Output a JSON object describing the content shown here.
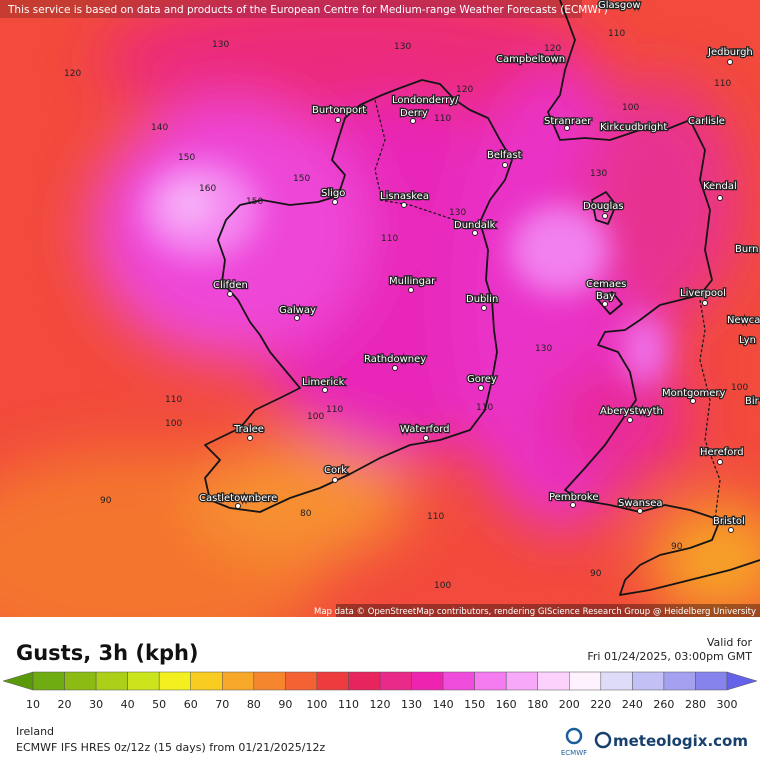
{
  "disclaimer": "This service is based on data and products of the European Centre for Medium-range Weather Forecasts (ECMWF)",
  "attribution": "Map data © OpenStreetMap contributors, rendering GIScience Research Group @ Heidelberg University",
  "cities": [
    "Glasgow",
    "Jedburgh",
    "Campbeltown",
    "Londonderry/",
    "Derry",
    "Burtonport",
    "Stranraer",
    "Kirkcudbright",
    "Carlisle",
    "Belfast",
    "Kendal",
    "Sligo",
    "Lisnaskea",
    "Douglas",
    "Dundalk",
    "Burn",
    "Clifden",
    "Mullingar",
    "Cemaes",
    "Bay",
    "Liverpool",
    "Dublin",
    "Galway",
    "Newca",
    "Lyn",
    "Rathdowney",
    "Limerick",
    "Gorey",
    "Montgomery",
    "Aberystwyth",
    "Bir",
    "Tralee",
    "Waterford",
    "Hereford",
    "Cork",
    "Castletownbere",
    "Pembroke",
    "Swansea",
    "Bristol"
  ],
  "contour_labels": [
    "130",
    "130",
    "120",
    "110",
    "120",
    "120",
    "100",
    "110",
    "140",
    "110",
    "150",
    "150",
    "160",
    "130",
    "150",
    "130",
    "110",
    "130",
    "110",
    "110",
    "100",
    "110",
    "100",
    "90",
    "80",
    "110",
    "100",
    "90",
    "90",
    "100"
  ],
  "title": "Gusts, 3h (kph)",
  "valid_label": "Valid for",
  "valid_time": "Fri 01/24/2025, 03:00pm GMT",
  "legend": {
    "labels": [
      10,
      20,
      30,
      40,
      50,
      60,
      70,
      80,
      90,
      100,
      110,
      120,
      130,
      140,
      150,
      160,
      180,
      200,
      220,
      240,
      260,
      280,
      300
    ],
    "colors": [
      "#5a9a0a",
      "#6eac12",
      "#8cbc14",
      "#acd018",
      "#cce41c",
      "#f4f020",
      "#f8cc20",
      "#f8a828",
      "#f6862e",
      "#f46234",
      "#ee3c3e",
      "#e8245c",
      "#ea2a88",
      "#ee24b0",
      "#f04cdc",
      "#f47cf0",
      "#f8a8f8",
      "#fcd2fc",
      "#fff2ff",
      "#dedcf8",
      "#c2c0f4",
      "#a4a2f0",
      "#8684ec",
      "#6462e8"
    ]
  },
  "region": "Ireland",
  "model": "ECMWF IFS HRES 0z/12z (15 days) from 01/21/2025/12z",
  "logo_ecmwf": "ECMWF",
  "logo_site": "meteologix.com"
}
